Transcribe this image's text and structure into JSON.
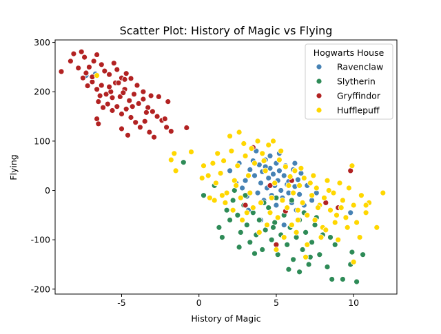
{
  "chart_data": {
    "type": "scatter",
    "title": "Scatter Plot: History of Magic vs Flying",
    "xlabel": "History of Magic",
    "ylabel": "Flying",
    "xlim": [
      -9.3,
      12.8
    ],
    "ylim": [
      -210,
      305
    ],
    "xticks": [
      -5,
      0,
      5,
      10
    ],
    "yticks": [
      -200,
      -100,
      0,
      100,
      200,
      300
    ],
    "grid": false,
    "legend": {
      "title": "Hogwarts House",
      "placement": "top-right"
    },
    "series": [
      {
        "name": "Ravenclaw",
        "color": "#4682b4",
        "points": [
          [
            -7.3,
            233
          ],
          [
            -6.7,
            236
          ],
          [
            2.0,
            40
          ],
          [
            2.6,
            55
          ],
          [
            3.0,
            20
          ],
          [
            3.3,
            42
          ],
          [
            3.5,
            60
          ],
          [
            3.6,
            30
          ],
          [
            3.8,
            -5
          ],
          [
            3.9,
            52
          ],
          [
            4.0,
            15
          ],
          [
            4.1,
            38
          ],
          [
            4.2,
            -20
          ],
          [
            4.3,
            62
          ],
          [
            4.4,
            5
          ],
          [
            4.5,
            25
          ],
          [
            4.6,
            45
          ],
          [
            4.7,
            -10
          ],
          [
            4.8,
            33
          ],
          [
            4.9,
            10
          ],
          [
            5.0,
            55
          ],
          [
            5.0,
            -30
          ],
          [
            5.1,
            20
          ],
          [
            5.2,
            40
          ],
          [
            5.3,
            0
          ],
          [
            5.4,
            -15
          ],
          [
            5.5,
            30
          ],
          [
            5.6,
            50
          ],
          [
            5.7,
            12
          ],
          [
            5.8,
            -5
          ],
          [
            5.9,
            28
          ],
          [
            6.0,
            -25
          ],
          [
            6.1,
            42
          ],
          [
            6.2,
            8
          ],
          [
            6.3,
            -40
          ],
          [
            6.4,
            22
          ],
          [
            6.5,
            -8
          ],
          [
            6.6,
            35
          ],
          [
            6.8,
            -30
          ],
          [
            7.0,
            10
          ],
          [
            7.3,
            -20
          ],
          [
            3.2,
            -40
          ],
          [
            4.0,
            -60
          ],
          [
            5.5,
            -70
          ],
          [
            2.8,
            5
          ],
          [
            4.6,
            70
          ],
          [
            5.2,
            75
          ],
          [
            3.7,
            80
          ],
          [
            6.2,
            55
          ],
          [
            7.6,
            -5
          ],
          [
            9.8,
            -45
          ],
          [
            2.4,
            15
          ],
          [
            3.1,
            -12
          ],
          [
            4.3,
            48
          ],
          [
            5.8,
            18
          ]
        ]
      },
      {
        "name": "Slytherin",
        "color": "#2e8b57",
        "points": [
          [
            -1.0,
            57
          ],
          [
            0.3,
            -10
          ],
          [
            1.0,
            10
          ],
          [
            1.3,
            -75
          ],
          [
            1.5,
            -95
          ],
          [
            1.8,
            -40
          ],
          [
            2.0,
            -60
          ],
          [
            2.2,
            -20
          ],
          [
            2.5,
            -50
          ],
          [
            2.7,
            -85
          ],
          [
            2.9,
            -30
          ],
          [
            3.1,
            -70
          ],
          [
            3.3,
            -105
          ],
          [
            3.5,
            -45
          ],
          [
            3.7,
            -90
          ],
          [
            3.9,
            -60
          ],
          [
            4.1,
            -120
          ],
          [
            4.3,
            -80
          ],
          [
            4.5,
            -35
          ],
          [
            4.7,
            -100
          ],
          [
            4.9,
            -65
          ],
          [
            5.1,
            -130
          ],
          [
            5.3,
            -90
          ],
          [
            5.5,
            -50
          ],
          [
            5.7,
            -110
          ],
          [
            5.9,
            -75
          ],
          [
            6.1,
            -140
          ],
          [
            6.3,
            -95
          ],
          [
            6.5,
            -60
          ],
          [
            6.7,
            -120
          ],
          [
            6.9,
            -85
          ],
          [
            7.1,
            -150
          ],
          [
            7.3,
            -105
          ],
          [
            7.5,
            -70
          ],
          [
            7.8,
            -130
          ],
          [
            8.0,
            -90
          ],
          [
            8.3,
            -155
          ],
          [
            8.6,
            -180
          ],
          [
            8.8,
            -110
          ],
          [
            9.3,
            -180
          ],
          [
            9.8,
            -150
          ],
          [
            10.2,
            -185
          ],
          [
            10.6,
            -130
          ],
          [
            4.2,
            -25
          ],
          [
            5.0,
            -15
          ],
          [
            3.0,
            -10
          ],
          [
            2.3,
            0
          ],
          [
            6.0,
            -20
          ],
          [
            1.7,
            -25
          ],
          [
            5.8,
            -160
          ],
          [
            6.5,
            -165
          ],
          [
            7.2,
            -135
          ],
          [
            3.6,
            -128
          ],
          [
            8.5,
            -95
          ],
          [
            9.9,
            -125
          ],
          [
            4.8,
            -75
          ],
          [
            2.6,
            -115
          ],
          [
            6.8,
            -45
          ],
          [
            7.6,
            -55
          ]
        ]
      },
      {
        "name": "Gryffindor",
        "color": "#b22222",
        "points": [
          [
            -8.9,
            241
          ],
          [
            -8.3,
            262
          ],
          [
            -8.1,
            277
          ],
          [
            -7.6,
            281
          ],
          [
            -7.4,
            270
          ],
          [
            -7.1,
            250
          ],
          [
            -6.8,
            262
          ],
          [
            -6.6,
            275
          ],
          [
            -6.3,
            255
          ],
          [
            -6.1,
            242
          ],
          [
            -5.8,
            235
          ],
          [
            -5.5,
            258
          ],
          [
            -5.3,
            245
          ],
          [
            -5.0,
            228
          ],
          [
            -4.7,
            237
          ],
          [
            -7.8,
            248
          ],
          [
            -7.5,
            228
          ],
          [
            -7.2,
            212
          ],
          [
            -6.9,
            220
          ],
          [
            -6.6,
            205
          ],
          [
            -6.3,
            213
          ],
          [
            -6.0,
            195
          ],
          [
            -5.7,
            200
          ],
          [
            -5.4,
            218
          ],
          [
            -5.1,
            190
          ],
          [
            -4.8,
            205
          ],
          [
            -4.5,
            182
          ],
          [
            -4.2,
            195
          ],
          [
            -3.9,
            176
          ],
          [
            -3.6,
            185
          ],
          [
            -3.3,
            168
          ],
          [
            -3.0,
            160
          ],
          [
            -2.7,
            150
          ],
          [
            -2.4,
            142
          ],
          [
            -2.1,
            128
          ],
          [
            -1.8,
            120
          ],
          [
            -6.5,
            180
          ],
          [
            -6.2,
            168
          ],
          [
            -5.9,
            175
          ],
          [
            -5.6,
            162
          ],
          [
            -5.3,
            170
          ],
          [
            -5.0,
            155
          ],
          [
            -4.7,
            165
          ],
          [
            -4.4,
            148
          ],
          [
            -4.1,
            138
          ],
          [
            -3.8,
            128
          ],
          [
            -3.5,
            140
          ],
          [
            -3.2,
            118
          ],
          [
            -2.9,
            108
          ],
          [
            -4.6,
            112
          ],
          [
            -5.0,
            125
          ],
          [
            -6.6,
            145
          ],
          [
            -6.5,
            135
          ],
          [
            -5.2,
            218
          ],
          [
            -4.8,
            225
          ],
          [
            -4.0,
            213
          ],
          [
            -3.6,
            200
          ],
          [
            -2.6,
            190
          ],
          [
            -2.0,
            180
          ],
          [
            -6.4,
            192
          ],
          [
            -5.6,
            188
          ],
          [
            -4.3,
            170
          ],
          [
            -3.4,
            158
          ],
          [
            -2.2,
            145
          ],
          [
            -7.3,
            238
          ],
          [
            -6.9,
            230
          ],
          [
            -4.4,
            227
          ],
          [
            -3.1,
            192
          ],
          [
            -5.8,
            210
          ],
          [
            -4.9,
            198
          ],
          [
            -0.8,
            127
          ],
          [
            3.5,
            87
          ],
          [
            6.0,
            20
          ],
          [
            9.0,
            -35
          ],
          [
            9.8,
            40
          ],
          [
            5.0,
            -110
          ],
          [
            3.0,
            -30
          ],
          [
            5.6,
            -42
          ],
          [
            8.2,
            -25
          ],
          [
            4.6,
            10
          ]
        ]
      },
      {
        "name": "Hufflepuff",
        "color": "#ffd700",
        "points": [
          [
            -6.6,
            233
          ],
          [
            -1.8,
            62
          ],
          [
            -1.6,
            75
          ],
          [
            -1.5,
            40
          ],
          [
            -0.5,
            78
          ],
          [
            0.3,
            50
          ],
          [
            0.6,
            30
          ],
          [
            0.9,
            55
          ],
          [
            1.0,
            -20
          ],
          [
            1.2,
            75
          ],
          [
            1.4,
            35
          ],
          [
            1.6,
            60
          ],
          [
            1.8,
            -5
          ],
          [
            2.0,
            110
          ],
          [
            2.1,
            80
          ],
          [
            2.3,
            20
          ],
          [
            2.5,
            50
          ],
          [
            2.6,
            118
          ],
          [
            2.7,
            -15
          ],
          [
            2.9,
            95
          ],
          [
            3.0,
            70
          ],
          [
            3.2,
            30
          ],
          [
            3.4,
            85
          ],
          [
            3.5,
            -35
          ],
          [
            3.6,
            55
          ],
          [
            3.8,
            100
          ],
          [
            4.0,
            -25
          ],
          [
            4.1,
            75
          ],
          [
            4.3,
            40
          ],
          [
            4.5,
            92
          ],
          [
            4.6,
            -45
          ],
          [
            4.8,
            100
          ],
          [
            4.9,
            15
          ],
          [
            5.1,
            -55
          ],
          [
            5.2,
            62
          ],
          [
            5.4,
            -20
          ],
          [
            5.6,
            48
          ],
          [
            5.7,
            -35
          ],
          [
            5.9,
            28
          ],
          [
            6.0,
            -70
          ],
          [
            6.2,
            40
          ],
          [
            6.4,
            -40
          ],
          [
            6.5,
            10
          ],
          [
            6.7,
            -25
          ],
          [
            6.8,
            25
          ],
          [
            7.0,
            -50
          ],
          [
            7.2,
            15
          ],
          [
            7.3,
            -10
          ],
          [
            7.5,
            -60
          ],
          [
            7.6,
            5
          ],
          [
            7.8,
            -30
          ],
          [
            8.0,
            -75
          ],
          [
            8.1,
            -15
          ],
          [
            8.3,
            20
          ],
          [
            8.5,
            -40
          ],
          [
            8.7,
            -5
          ],
          [
            8.9,
            -50
          ],
          [
            9.1,
            15
          ],
          [
            9.3,
            -20
          ],
          [
            9.5,
            -55
          ],
          [
            9.7,
            5
          ],
          [
            10.0,
            -30
          ],
          [
            10.2,
            -65
          ],
          [
            10.5,
            -10
          ],
          [
            10.8,
            -45
          ],
          [
            11.0,
            -25
          ],
          [
            11.5,
            -75
          ],
          [
            11.9,
            -5
          ],
          [
            10.0,
            -145
          ],
          [
            10.8,
            -30
          ],
          [
            9.0,
            -100
          ],
          [
            8.2,
            -80
          ],
          [
            7.0,
            -110
          ],
          [
            6.3,
            -85
          ],
          [
            5.5,
            -95
          ],
          [
            4.4,
            -70
          ],
          [
            3.1,
            -45
          ],
          [
            1.7,
            -25
          ],
          [
            2.4,
            10
          ],
          [
            3.3,
            -5
          ],
          [
            4.7,
            -15
          ],
          [
            6.1,
            -5
          ],
          [
            7.7,
            -35
          ],
          [
            9.9,
            50
          ],
          [
            0.2,
            25
          ],
          [
            0.7,
            -15
          ],
          [
            1.1,
            15
          ],
          [
            4.2,
            60
          ],
          [
            5.3,
            80
          ],
          [
            6.6,
            45
          ],
          [
            7.4,
            30
          ],
          [
            8.8,
            -65
          ],
          [
            9.6,
            -75
          ],
          [
            10.4,
            -95
          ],
          [
            2.8,
            -60
          ],
          [
            3.9,
            -85
          ],
          [
            5.0,
            -120
          ],
          [
            6.9,
            -135
          ],
          [
            7.9,
            -95
          ],
          [
            1.5,
            -10
          ],
          [
            2.2,
            -40
          ],
          [
            5.8,
            10
          ],
          [
            6.4,
            -60
          ],
          [
            8.4,
            0
          ],
          [
            9.2,
            -35
          ]
        ]
      }
    ]
  }
}
